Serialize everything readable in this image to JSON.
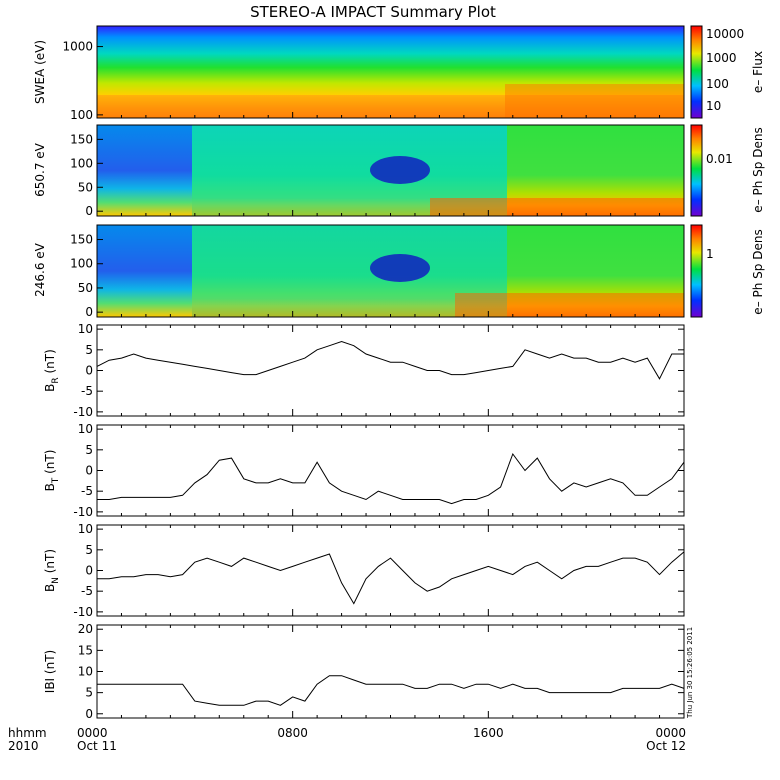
{
  "title": "STEREO-A IMPACT Summary Plot",
  "timestamp": "Thu Jun 30 15:26:05 2011",
  "time_axis": {
    "corner_label_1": "hhmm",
    "corner_label_2": "2010",
    "ticks": [
      {
        "hours": 0,
        "label": "0000",
        "sublabel": "Oct 11"
      },
      {
        "hours": 8,
        "label": "0800",
        "sublabel": ""
      },
      {
        "hours": 16,
        "label": "1600",
        "sublabel": ""
      },
      {
        "hours": 24,
        "label": "0000",
        "sublabel": "Oct 12"
      }
    ],
    "range_hours": [
      0,
      24
    ]
  },
  "spectrograms": [
    {
      "ylabel": "SWEA (eV)",
      "scale": "log",
      "ylim": [
        90,
        2000
      ],
      "yticks": [
        100,
        1000
      ],
      "ytick_labels": [
        "100",
        "1000"
      ],
      "colorbar_label": "e– Flux",
      "colorbar_ticks": [
        "10",
        "100",
        "1000",
        "10000"
      ]
    },
    {
      "ylabel": "650.7 eV",
      "scale": "linear",
      "ylim": [
        -10,
        180
      ],
      "yticks": [
        0,
        50,
        100,
        150
      ],
      "ytick_labels": [
        "0",
        "50",
        "100",
        "150"
      ],
      "colorbar_label": "e– Ph Sp Dens",
      "colorbar_ticks": [
        "0.01"
      ]
    },
    {
      "ylabel": "246.6 eV",
      "scale": "linear",
      "ylim": [
        -10,
        180
      ],
      "yticks": [
        0,
        50,
        100,
        150
      ],
      "ytick_labels": [
        "0",
        "50",
        "100",
        "150"
      ],
      "colorbar_label": "e– Ph Sp Dens",
      "colorbar_ticks": [
        "1"
      ]
    }
  ],
  "chart_data": {
    "type": "line",
    "x_unit": "hours since 0000 Oct 11",
    "panels": [
      {
        "ylabel_main": "B",
        "ylabel_sub": "R",
        "ylabel_unit": "(nT)",
        "ylim": [
          -11,
          11
        ],
        "yticks": [
          -10,
          -5,
          0,
          5,
          10
        ],
        "x": [
          0,
          0.5,
          1,
          1.5,
          2,
          2.5,
          3,
          3.5,
          4,
          4.5,
          5,
          5.5,
          6,
          6.5,
          7,
          7.5,
          8,
          8.5,
          9,
          9.5,
          10,
          10.5,
          11,
          11.5,
          12,
          12.5,
          13,
          13.5,
          14,
          14.5,
          15,
          15.5,
          16,
          16.5,
          17,
          17.5,
          18,
          18.5,
          19,
          19.5,
          20,
          20.5,
          21,
          21.5,
          22,
          22.5,
          23,
          23.5,
          24
        ],
        "y": [
          1,
          2.5,
          3,
          4,
          3,
          2.5,
          2,
          1.5,
          1,
          0.5,
          0,
          -0.5,
          -1,
          -1,
          0,
          1,
          2,
          3,
          5,
          6,
          7,
          6,
          4,
          3,
          2,
          2,
          1,
          0,
          0,
          -1,
          -1,
          -0.5,
          0,
          0.5,
          1,
          5,
          4,
          3,
          4,
          3,
          3,
          2,
          2,
          3,
          2,
          3,
          -2,
          4,
          4
        ]
      },
      {
        "ylabel_main": "B",
        "ylabel_sub": "T",
        "ylabel_unit": "(nT)",
        "ylim": [
          -11,
          11
        ],
        "yticks": [
          -10,
          -5,
          0,
          5,
          10
        ],
        "x": [
          0,
          0.5,
          1,
          1.5,
          2,
          2.5,
          3,
          3.5,
          4,
          4.5,
          5,
          5.5,
          6,
          6.5,
          7,
          7.5,
          8,
          8.5,
          9,
          9.5,
          10,
          10.5,
          11,
          11.5,
          12,
          12.5,
          13,
          13.5,
          14,
          14.5,
          15,
          15.5,
          16,
          16.5,
          17,
          17.5,
          18,
          18.5,
          19,
          19.5,
          20,
          20.5,
          21,
          21.5,
          22,
          22.5,
          23,
          23.5,
          24
        ],
        "y": [
          -7,
          -7,
          -6.5,
          -6.5,
          -6.5,
          -6.5,
          -6.5,
          -6,
          -3,
          -1,
          2.5,
          3,
          -2,
          -3,
          -3,
          -2,
          -3,
          -3,
          2,
          -3,
          -5,
          -6,
          -7,
          -5,
          -6,
          -7,
          -7,
          -7,
          -7,
          -8,
          -7,
          -7,
          -6,
          -4,
          4,
          0,
          3,
          -2,
          -5,
          -3,
          -4,
          -3,
          -2,
          -3,
          -6,
          -6,
          -4,
          -2,
          2
        ]
      },
      {
        "ylabel_main": "B",
        "ylabel_sub": "N",
        "ylabel_unit": "(nT)",
        "ylim": [
          -11,
          11
        ],
        "yticks": [
          -10,
          -5,
          0,
          5,
          10
        ],
        "x": [
          0,
          0.5,
          1,
          1.5,
          2,
          2.5,
          3,
          3.5,
          4,
          4.5,
          5,
          5.5,
          6,
          6.5,
          7,
          7.5,
          8,
          8.5,
          9,
          9.5,
          10,
          10.5,
          11,
          11.5,
          12,
          12.5,
          13,
          13.5,
          14,
          14.5,
          15,
          15.5,
          16,
          16.5,
          17,
          17.5,
          18,
          18.5,
          19,
          19.5,
          20,
          20.5,
          21,
          21.5,
          22,
          22.5,
          23,
          23.5,
          24
        ],
        "y": [
          -2,
          -2,
          -1.5,
          -1.5,
          -1,
          -1,
          -1.5,
          -1,
          2,
          3,
          2,
          1,
          3,
          2,
          1,
          0,
          1,
          2,
          3,
          4,
          -3,
          -8,
          -2,
          1,
          3,
          0,
          -3,
          -5,
          -4,
          -2,
          -1,
          0,
          1,
          0,
          -1,
          1,
          2,
          0,
          -2,
          0,
          1,
          1,
          2,
          3,
          3,
          2,
          -1,
          2,
          4.5
        ]
      },
      {
        "ylabel_main": "IBI",
        "ylabel_sub": "",
        "ylabel_unit": "(nT)",
        "ylim": [
          -1,
          21
        ],
        "yticks": [
          0,
          5,
          10,
          15,
          20
        ],
        "x": [
          0,
          0.5,
          1,
          1.5,
          2,
          2.5,
          3,
          3.5,
          4,
          4.5,
          5,
          5.5,
          6,
          6.5,
          7,
          7.5,
          8,
          8.5,
          9,
          9.5,
          10,
          10.5,
          11,
          11.5,
          12,
          12.5,
          13,
          13.5,
          14,
          14.5,
          15,
          15.5,
          16,
          16.5,
          17,
          17.5,
          18,
          18.5,
          19,
          19.5,
          20,
          20.5,
          21,
          21.5,
          22,
          22.5,
          23,
          23.5,
          24
        ],
        "y": [
          7,
          7,
          7,
          7,
          7,
          7,
          7,
          7,
          3,
          2.5,
          2,
          2,
          2,
          3,
          3,
          2,
          4,
          3,
          7,
          9,
          9,
          8,
          7,
          7,
          7,
          7,
          6,
          6,
          7,
          7,
          6,
          7,
          7,
          6,
          7,
          6,
          6,
          5,
          5,
          5,
          5,
          5,
          5,
          6,
          6,
          6,
          6,
          7,
          6
        ]
      }
    ]
  }
}
